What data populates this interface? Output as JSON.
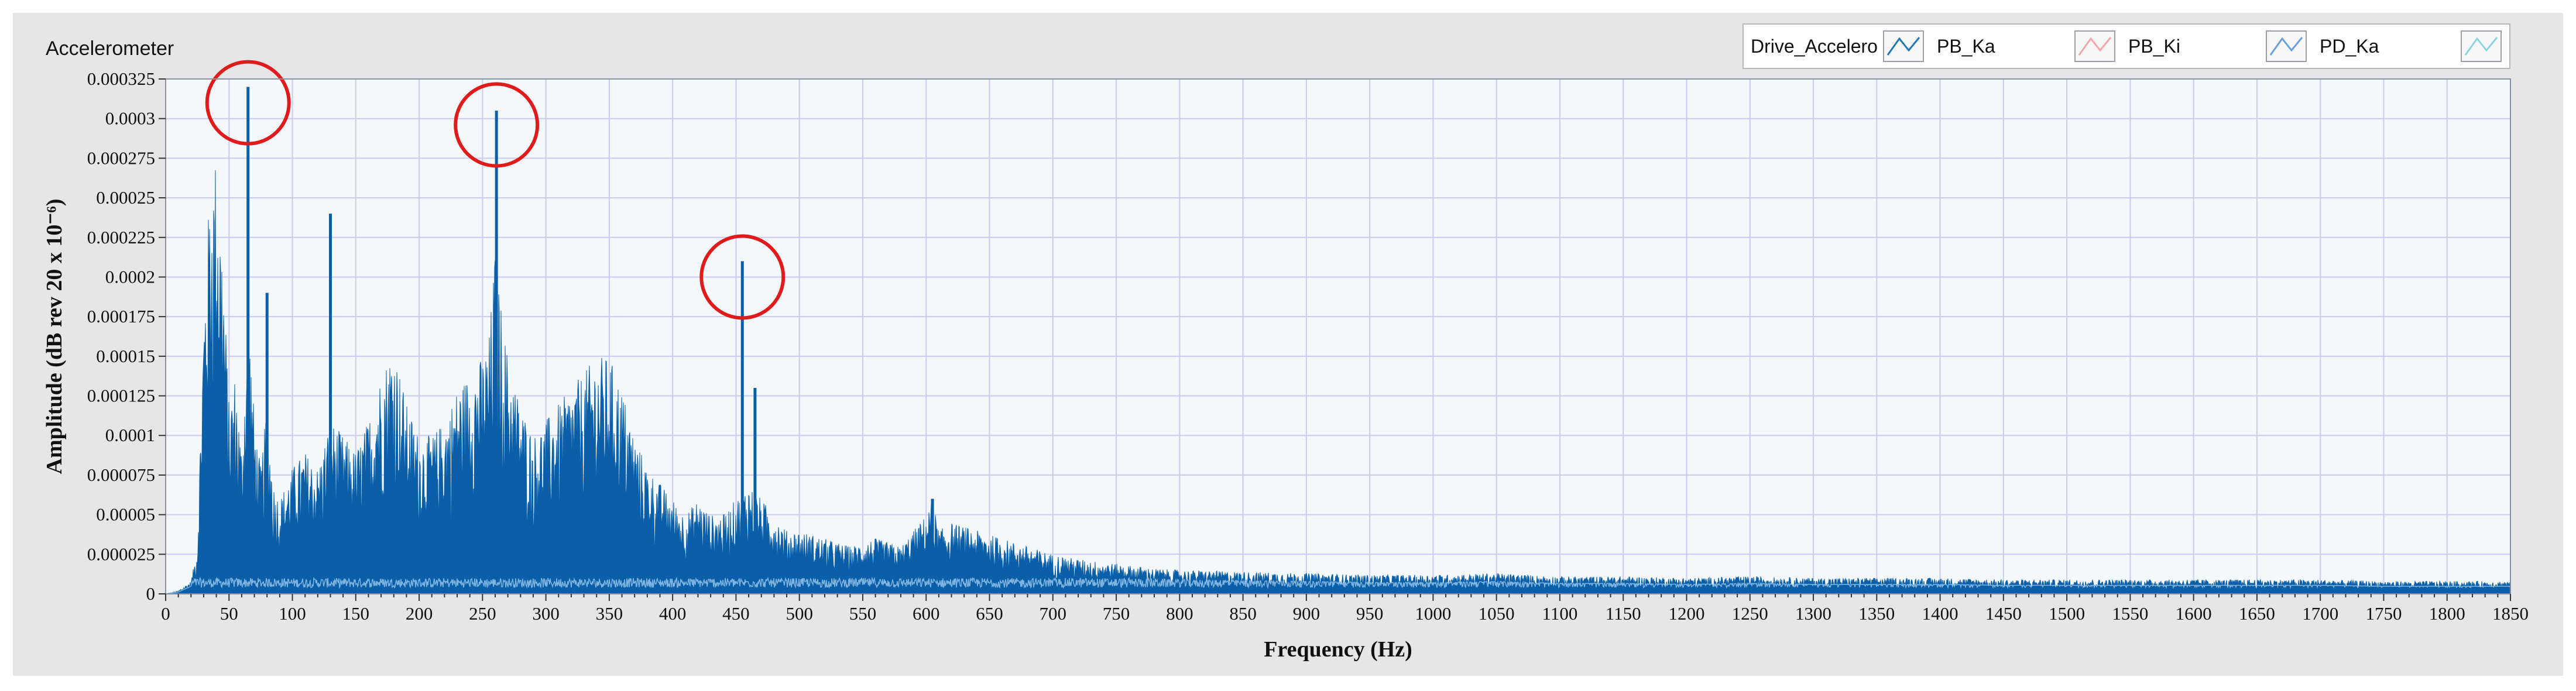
{
  "panel": {
    "title": "Accelerometer"
  },
  "legend": {
    "items": [
      {
        "label": "Drive_Accelero",
        "swatch": false
      },
      {
        "label": "PB_Ka",
        "swatch": true,
        "color": "#1f77b4"
      },
      {
        "label": "PB_Ki",
        "swatch": true,
        "color": "#f2a6a6"
      },
      {
        "label": "PD_Ka",
        "swatch": true,
        "color": "#6a9fd8"
      },
      {
        "label": "",
        "swatch": true,
        "color": "#8fd3df"
      }
    ]
  },
  "chart_data": {
    "type": "area",
    "xlabel": "Frequency (Hz)",
    "ylabel": "Amplitude (dB rev 20 x 10⁻⁶)",
    "xlim": [
      0,
      1850
    ],
    "ylim": [
      0,
      0.000325
    ],
    "x_tick_step": 50,
    "y_tick_step": 2.5e-05,
    "y_ticks": [
      "0",
      "0.000025",
      "0.00005",
      "0.000075",
      "0.0001",
      "0.000125",
      "0.00015",
      "0.000175",
      "0.0002",
      "0.000225",
      "0.00025",
      "0.000275",
      "0.0003",
      "0.000325"
    ],
    "grid": true,
    "fill_color": "#0a5fa8",
    "plot_background": "#f4f8fb",
    "grid_color": "#c9ccf0",
    "series": [
      {
        "x": [
          0,
          10,
          20,
          25,
          30,
          35,
          40,
          45,
          50,
          55,
          60,
          65,
          70,
          75,
          80,
          85,
          90,
          100,
          110,
          120,
          130,
          140,
          150,
          160,
          170,
          180,
          190,
          195,
          200,
          210,
          220,
          230,
          240,
          250,
          255,
          260,
          265,
          270,
          280,
          290,
          300,
          310,
          320,
          330,
          340,
          350,
          360,
          370,
          380,
          390,
          400,
          410,
          420,
          430,
          440,
          450,
          460,
          470,
          480,
          490,
          500,
          520,
          540,
          560,
          580,
          600,
          605,
          610,
          620,
          640,
          660,
          680,
          700,
          720,
          740,
          760,
          780,
          800,
          850,
          900,
          950,
          1000,
          1050,
          1100,
          1150,
          1200,
          1250,
          1300,
          1350,
          1400,
          1450,
          1500,
          1550,
          1600,
          1650,
          1700,
          1750,
          1800,
          1850
        ],
        "y": [
          0,
          2e-06,
          8e-06,
          3e-05,
          0.00018,
          0.00026,
          0.00028,
          0.00022,
          0.00012,
          0.00014,
          9e-05,
          0.00019,
          0.00011,
          8e-05,
          0.00012,
          7e-05,
          6e-05,
          8e-05,
          9e-05,
          8e-05,
          0.00011,
          0.0001,
          9e-05,
          0.00011,
          0.00014,
          0.00016,
          0.00012,
          0.00011,
          0.0001,
          0.0001,
          0.00011,
          0.00013,
          0.00014,
          0.00015,
          0.00016,
          0.00022,
          0.00018,
          0.00015,
          0.00012,
          0.0001,
          0.00011,
          0.00012,
          0.00013,
          0.00014,
          0.00015,
          0.00015,
          0.00013,
          0.0001,
          8e-05,
          7e-05,
          6e-05,
          5e-05,
          6e-05,
          5e-05,
          5e-05,
          6e-05,
          7e-05,
          6e-05,
          5e-05,
          4e-05,
          4e-05,
          3.5e-05,
          3e-05,
          3.5e-05,
          3e-05,
          5e-05,
          6e-05,
          4e-05,
          4.5e-05,
          4e-05,
          3.5e-05,
          3e-05,
          2.5e-05,
          2.2e-05,
          2e-05,
          1.8e-05,
          1.6e-05,
          1.5e-05,
          1.4e-05,
          1.3e-05,
          1.2e-05,
          1.2e-05,
          1.3e-05,
          1.1e-05,
          1.1e-05,
          1e-05,
          1.1e-05,
          1e-05,
          1e-05,
          1e-05,
          9e-06,
          9e-06,
          9e-06,
          9e-06,
          9e-06,
          9e-06,
          8e-06,
          8e-06,
          8e-06
        ]
      }
    ],
    "peaks": [
      {
        "x": 65,
        "y": 0.00032
      },
      {
        "x": 130,
        "y": 0.00024
      },
      {
        "x": 80,
        "y": 0.00019
      },
      {
        "x": 261,
        "y": 0.000305
      },
      {
        "x": 455,
        "y": 0.00021
      },
      {
        "x": 465,
        "y": 0.00013
      },
      {
        "x": 605,
        "y": 6e-05
      }
    ],
    "annotations": [
      {
        "type": "circle",
        "x": 65,
        "y": 0.00031,
        "color": "#e01b1b"
      },
      {
        "type": "circle",
        "x": 261,
        "y": 0.000296,
        "color": "#e01b1b"
      },
      {
        "type": "circle",
        "x": 455,
        "y": 0.0002,
        "color": "#e01b1b"
      }
    ]
  }
}
